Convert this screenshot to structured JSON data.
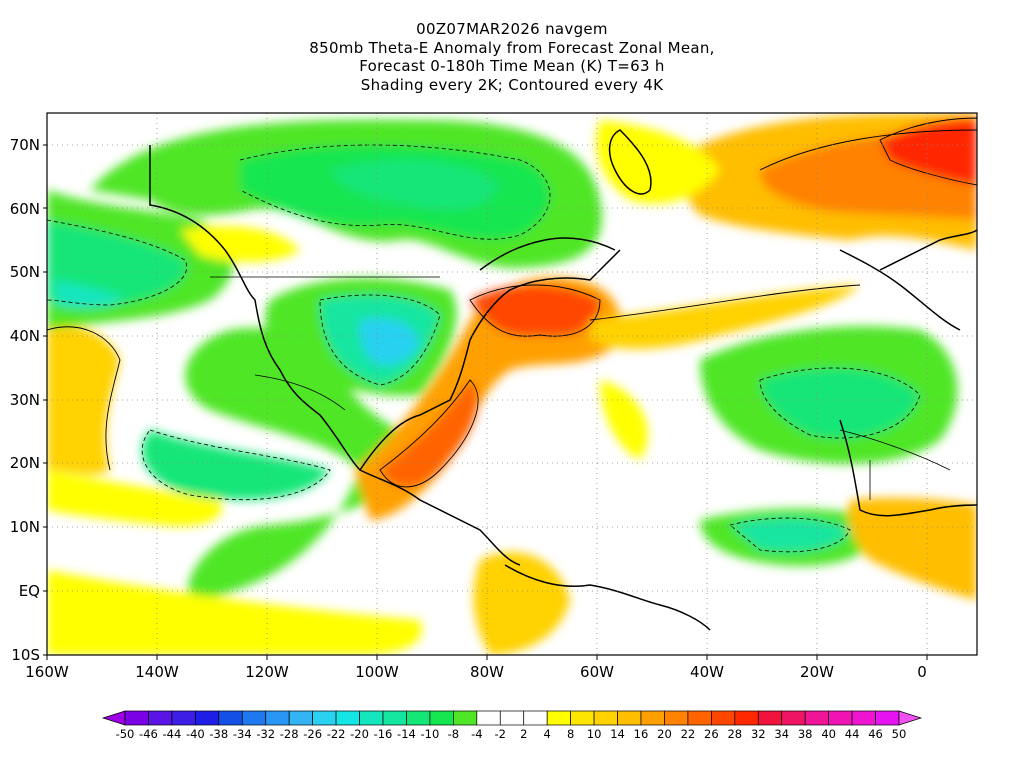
{
  "title": {
    "lines": [
      "00Z07MAR2026 navgem",
      "850mb Theta-E Anomaly from Forecast Zonal Mean,",
      "Forecast 0-180h Time Mean (K) T=63 h",
      "Shading every 2K; Contoured every 4K"
    ]
  },
  "map": {
    "lat_labels": [
      "70N",
      "60N",
      "50N",
      "40N",
      "30N",
      "20N",
      "10N",
      "EQ",
      "10S"
    ],
    "lon_labels": [
      "160W",
      "140W",
      "120W",
      "100W",
      "80W",
      "60W",
      "40W",
      "20W",
      "0"
    ]
  },
  "colorbar": {
    "labels": [
      "-50",
      "-46",
      "-44",
      "-40",
      "-38",
      "-34",
      "-32",
      "-28",
      "-26",
      "-22",
      "-20",
      "-16",
      "-14",
      "-10",
      "-8",
      "-4",
      "-2",
      "2",
      "4",
      "8",
      "10",
      "14",
      "16",
      "20",
      "22",
      "26",
      "28",
      "32",
      "34",
      "38",
      "40",
      "44",
      "46",
      "50"
    ],
    "colors": [
      "#a000e6",
      "#7b00e6",
      "#5a14e6",
      "#3c1ee6",
      "#1e1ee6",
      "#1450e6",
      "#1e78f0",
      "#2896f5",
      "#32b4f5",
      "#28d2f0",
      "#14e6e6",
      "#14e6be",
      "#14e6a0",
      "#14e678",
      "#14e650",
      "#50e628",
      "#ffffff",
      "#ffffff",
      "#ffffff",
      "#ffff00",
      "#ffe600",
      "#ffd200",
      "#ffbe00",
      "#ffa000",
      "#ff8200",
      "#ff6400",
      "#ff4600",
      "#ff2800",
      "#f0143c",
      "#f01464",
      "#f01496",
      "#f014b4",
      "#f014d2",
      "#e614f0",
      "#f050f0"
    ]
  }
}
